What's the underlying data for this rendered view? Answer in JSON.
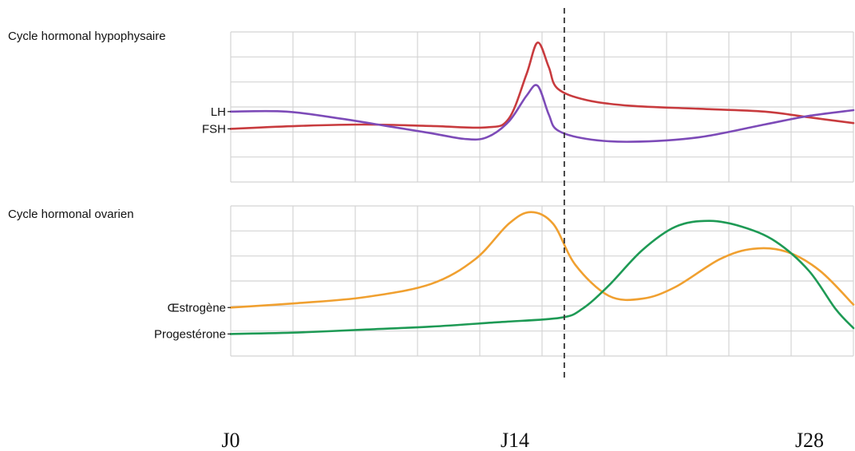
{
  "colors": {
    "fsh": "#c83b3e",
    "lh": "#7d4bb8",
    "oestrogene": "#f0a030",
    "progesterone": "#1e9a55",
    "grid": "#d4d4d4"
  },
  "chart_data": [
    {
      "type": "line",
      "title": "Cycle hormonal hypophysaire",
      "xlabel": "",
      "ylabel": "",
      "xlim": [
        0,
        28
      ],
      "ylim": [
        0,
        1
      ],
      "grid": true,
      "x_ticks": [
        {
          "x": 0,
          "label": "J0"
        },
        {
          "x": 14,
          "label": "J14"
        },
        {
          "x": 28,
          "label": "J28"
        }
      ],
      "series": [
        {
          "name": "FSH",
          "color_key": "fsh",
          "points": [
            [
              0,
              0.37
            ],
            [
              3,
              0.39
            ],
            [
              6,
              0.4
            ],
            [
              9,
              0.39
            ],
            [
              11.5,
              0.38
            ],
            [
              12.5,
              0.44
            ],
            [
              13.3,
              0.75
            ],
            [
              13.8,
              0.97
            ],
            [
              14.3,
              0.8
            ],
            [
              14.7,
              0.65
            ],
            [
              16,
              0.57
            ],
            [
              18,
              0.53
            ],
            [
              21,
              0.51
            ],
            [
              24,
              0.49
            ],
            [
              26,
              0.45
            ],
            [
              28,
              0.41
            ]
          ]
        },
        {
          "name": "LH",
          "color_key": "lh",
          "points": [
            [
              0,
              0.49
            ],
            [
              2.5,
              0.49
            ],
            [
              5,
              0.44
            ],
            [
              7,
              0.39
            ],
            [
              9,
              0.34
            ],
            [
              10.5,
              0.3
            ],
            [
              11.5,
              0.31
            ],
            [
              12.5,
              0.42
            ],
            [
              13.3,
              0.6
            ],
            [
              13.8,
              0.67
            ],
            [
              14.3,
              0.47
            ],
            [
              14.7,
              0.36
            ],
            [
              16,
              0.3
            ],
            [
              18,
              0.28
            ],
            [
              21,
              0.31
            ],
            [
              24,
              0.4
            ],
            [
              26,
              0.46
            ],
            [
              28,
              0.5
            ]
          ]
        }
      ],
      "series_labels": [
        {
          "text": "FSH",
          "series_index": 0
        },
        {
          "text": "LH",
          "series_index": 1
        }
      ]
    },
    {
      "type": "line",
      "title": "Cycle hormonal ovarien",
      "xlabel": "",
      "ylabel": "",
      "xlim": [
        0,
        28
      ],
      "ylim": [
        0,
        1
      ],
      "grid": true,
      "series": [
        {
          "name": "Œstrogène",
          "color_key": "oestrogene",
          "points": [
            [
              0,
              0.33
            ],
            [
              3,
              0.36
            ],
            [
              6,
              0.4
            ],
            [
              9,
              0.49
            ],
            [
              11,
              0.66
            ],
            [
              12.5,
              0.9
            ],
            [
              13.5,
              0.98
            ],
            [
              14.5,
              0.9
            ],
            [
              15.5,
              0.62
            ],
            [
              17,
              0.41
            ],
            [
              18.5,
              0.39
            ],
            [
              20,
              0.47
            ],
            [
              22,
              0.66
            ],
            [
              23.5,
              0.73
            ],
            [
              25,
              0.71
            ],
            [
              26.5,
              0.58
            ],
            [
              28,
              0.35
            ]
          ]
        },
        {
          "name": "Progestérone",
          "color_key": "progesterone",
          "points": [
            [
              0,
              0.15
            ],
            [
              3,
              0.16
            ],
            [
              6,
              0.18
            ],
            [
              9,
              0.2
            ],
            [
              12,
              0.23
            ],
            [
              14.8,
              0.26
            ],
            [
              15.8,
              0.32
            ],
            [
              17,
              0.48
            ],
            [
              18.5,
              0.72
            ],
            [
              20,
              0.88
            ],
            [
              21.5,
              0.92
            ],
            [
              23,
              0.88
            ],
            [
              24.5,
              0.78
            ],
            [
              26,
              0.58
            ],
            [
              27.2,
              0.32
            ],
            [
              28,
              0.19
            ]
          ]
        }
      ],
      "series_labels": [
        {
          "text": "Œstrogène",
          "series_index": 0
        },
        {
          "text": "Progestérone",
          "series_index": 1
        }
      ]
    }
  ],
  "ovulation_marker": {
    "x": 15.0
  }
}
